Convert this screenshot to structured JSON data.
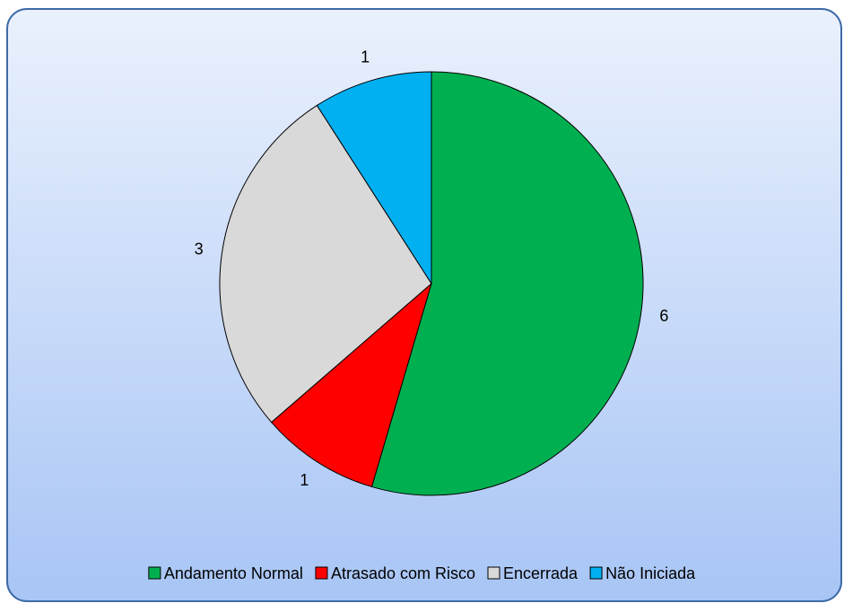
{
  "chart_data": {
    "type": "pie",
    "categories": [
      "Andamento Normal",
      "Atrasado com Risco",
      "Encerrada",
      "Não Iniciada"
    ],
    "values": [
      6,
      1,
      3,
      1
    ],
    "colors": [
      "#00b050",
      "#ff0000",
      "#d9d9d9",
      "#00b0f0"
    ],
    "legend": "bottom"
  }
}
